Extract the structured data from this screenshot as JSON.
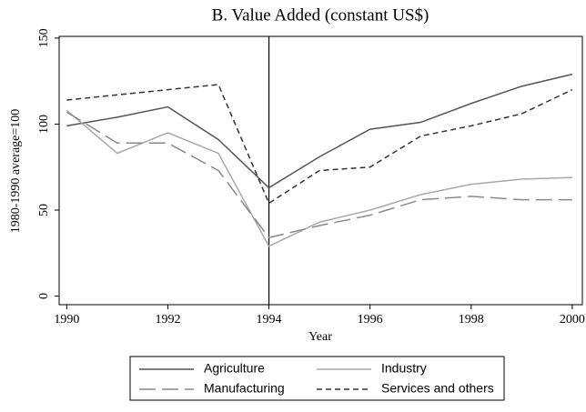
{
  "chart_data": {
    "type": "line",
    "title": "B. Value Added (constant US$)",
    "x_label": "Year",
    "y_label": "1980-1990 average=100",
    "x": [
      1990,
      1991,
      1992,
      1993,
      1994,
      1995,
      1996,
      1997,
      1998,
      1999,
      2000
    ],
    "series": [
      {
        "name": "Agriculture",
        "color": "#555555",
        "dash": "none",
        "values": [
          99,
          104,
          110,
          91,
          63,
          81,
          97,
          101,
          112,
          122,
          129
        ]
      },
      {
        "name": "Industry",
        "color": "#a8a8a8",
        "dash": "none",
        "values": [
          108,
          83,
          95,
          83,
          29,
          43,
          50,
          59,
          65,
          68,
          69
        ]
      },
      {
        "name": "Manufacturing",
        "color": "#8a8a8a",
        "dash": "18 7",
        "values": [
          107,
          89,
          89,
          73,
          34,
          41,
          47,
          56,
          58,
          56,
          56
        ]
      },
      {
        "name": "Services and others",
        "color": "#333333",
        "dash": "6 4",
        "values": [
          114,
          117,
          120,
          123,
          54,
          73,
          75,
          93,
          99,
          106,
          120
        ]
      }
    ],
    "xlim": [
      1989.85,
      2000.2
    ],
    "ylim": [
      -5,
      151
    ],
    "xticks": [
      1990,
      1992,
      1994,
      1996,
      1998,
      2000
    ],
    "yticks": [
      0,
      50,
      100,
      150
    ],
    "vline": 1994,
    "grid": false,
    "legend": "bottom"
  }
}
